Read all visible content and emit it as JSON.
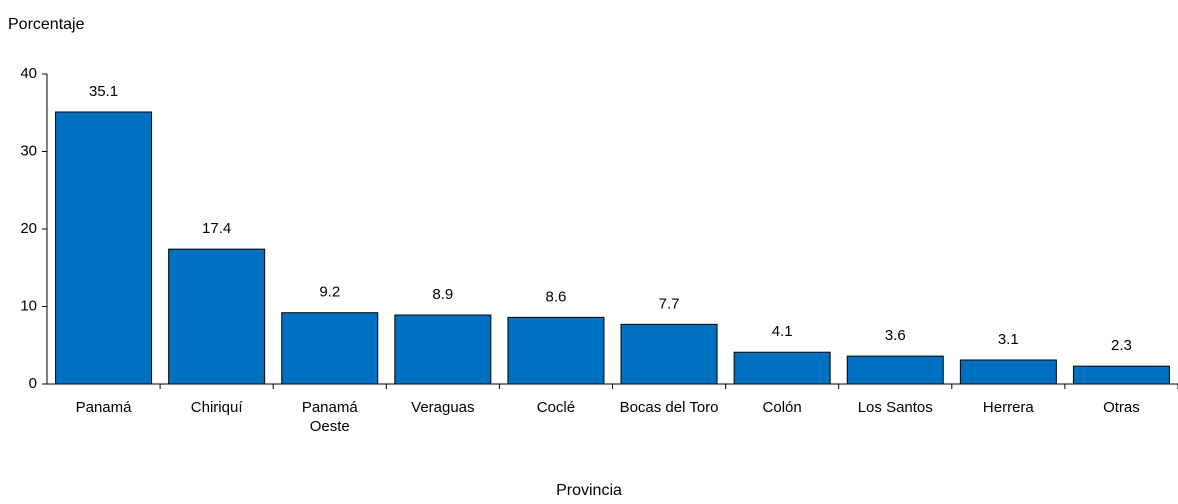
{
  "chart_data": {
    "type": "bar",
    "y_label": "Porcentaje",
    "x_label": "Provincia",
    "categories": [
      "Panamá",
      "Chiriquí",
      "Panamá Oeste",
      "Veraguas",
      "Coclé",
      "Bocas del Toro",
      "Colón",
      "Los Santos",
      "Herrera",
      "Otras"
    ],
    "values": [
      35.1,
      17.4,
      9.2,
      8.9,
      8.6,
      7.7,
      4.1,
      3.6,
      3.1,
      2.3
    ],
    "value_labels": [
      "35.1",
      "17.4",
      "9.2",
      "8.9",
      "8.6",
      "7.7",
      "4.1",
      "3.6",
      "3.1",
      "2.3"
    ],
    "color": "#0070c0",
    "ylim": [
      0,
      40
    ],
    "yticks": [
      0,
      10,
      20,
      30,
      40
    ],
    "grid": false
  }
}
